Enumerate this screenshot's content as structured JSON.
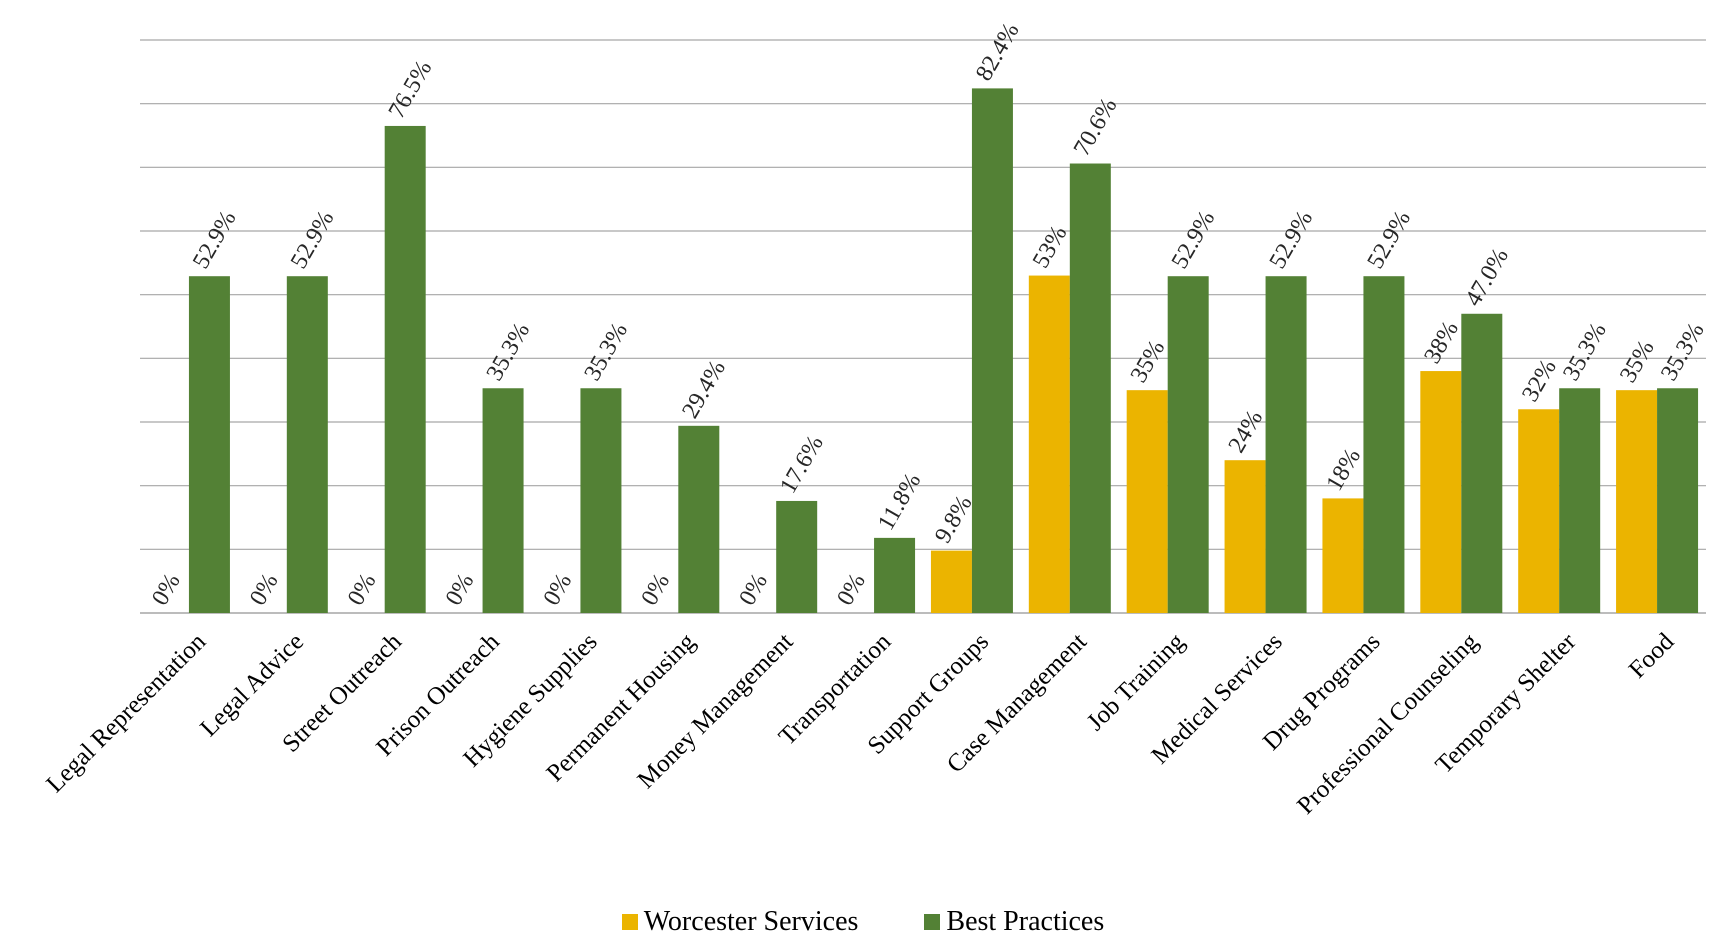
{
  "chart_data": {
    "type": "bar",
    "title": "",
    "xlabel": "",
    "ylabel": "",
    "ylim": [
      0,
      90
    ],
    "grid": true,
    "legend_position": "bottom",
    "categories": [
      "Legal Representation",
      "Legal Advice",
      "Street Outreach",
      "Prison Outreach",
      "Hygiene Supplies",
      "Permanent Housing",
      "Money Management",
      "Transportation",
      "Support Groups",
      "Case Management",
      "Job Training",
      "Medical Services",
      "Drug Programs",
      "Professional Counseling",
      "Temporary Shelter",
      "Food"
    ],
    "series": [
      {
        "name": "Worcester Services",
        "color": "#EBB400",
        "values": [
          0,
          0,
          0,
          0,
          0,
          0,
          0,
          0,
          9.8,
          53,
          35,
          24,
          18,
          38,
          32,
          35
        ],
        "labels": [
          "0%",
          "0%",
          "0%",
          "0%",
          "0%",
          "0%",
          "0%",
          "0%",
          "9.8%",
          "53%",
          "35%",
          "24%",
          "18%",
          "38%",
          "32%",
          "35%"
        ]
      },
      {
        "name": "Best Practices",
        "color": "#538135",
        "values": [
          52.9,
          52.9,
          76.5,
          35.3,
          35.3,
          29.4,
          17.6,
          11.8,
          82.4,
          70.6,
          52.9,
          52.9,
          52.9,
          47.0,
          35.3,
          35.3
        ],
        "labels": [
          "52.9%",
          "52.9%",
          "76.5%",
          "35.3%",
          "35.3%",
          "29.4%",
          "17.6%",
          "11.8%",
          "82.4%",
          "70.6%",
          "52.9%",
          "52.9%",
          "52.9%",
          "47.0%",
          "35.3%",
          "35.3%"
        ]
      }
    ]
  }
}
